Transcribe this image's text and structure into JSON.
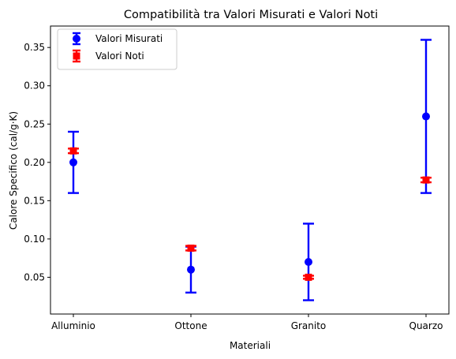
{
  "chart_data": {
    "type": "errorbar",
    "title": "Compatibilità tra Valori Misurati e Valori Noti",
    "xlabel": "Materiali",
    "ylabel": "Calore Specifico (cal/g·K)",
    "categories": [
      "Alluminio",
      "Ottone",
      "Granito",
      "Quarzo"
    ],
    "ylim": [
      0.002,
      0.378
    ],
    "yticks": [
      0.05,
      0.1,
      0.15,
      0.2,
      0.25,
      0.3,
      0.35
    ],
    "ytick_labels": [
      "0.05",
      "0.10",
      "0.15",
      "0.20",
      "0.25",
      "0.30",
      "0.35"
    ],
    "grid": false,
    "legend": "top-left",
    "series": [
      {
        "name": "Valori Misurati",
        "color": "#0000ff",
        "marker": "circle",
        "values": [
          0.2,
          0.06,
          0.07,
          0.26
        ],
        "errors": [
          0.04,
          0.03,
          0.05,
          0.1
        ]
      },
      {
        "name": "Valori Noti",
        "color": "#ff0000",
        "marker": "square",
        "values": [
          0.215,
          0.088,
          0.05,
          0.177
        ],
        "errors": [
          0.003,
          0.003,
          0.002,
          0.003
        ]
      }
    ]
  }
}
